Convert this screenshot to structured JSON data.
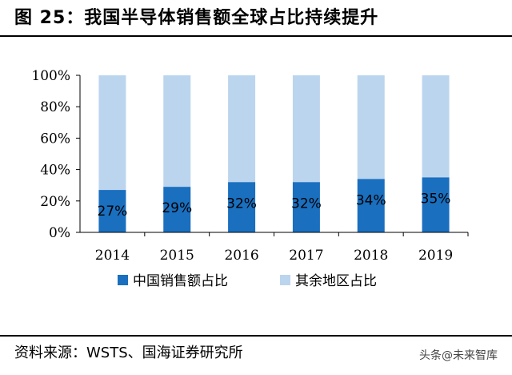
{
  "title": "图 25：我国半导体销售额全球占比持续提升",
  "source": "资料来源：WSTS、国海证券研究所",
  "watermark": "头条@未来智库",
  "colors": {
    "china": "#1a6fbf",
    "other": "#bcd5ee",
    "axis": "#000000"
  },
  "chart_data": {
    "type": "bar",
    "stacked": true,
    "categories": [
      "2014",
      "2015",
      "2016",
      "2017",
      "2018",
      "2019"
    ],
    "series": [
      {
        "name": "中国销售额占比",
        "values": [
          27,
          29,
          32,
          32,
          34,
          35
        ],
        "labels": [
          "27%",
          "29%",
          "32%",
          "32%",
          "34%",
          "35%"
        ]
      },
      {
        "name": "其余地区占比",
        "values": [
          73,
          71,
          68,
          68,
          66,
          65
        ]
      }
    ],
    "ylim": [
      0,
      100
    ],
    "yticks": [
      "0%",
      "20%",
      "40%",
      "60%",
      "80%",
      "100%"
    ],
    "grid": false,
    "legend": "bottom"
  }
}
